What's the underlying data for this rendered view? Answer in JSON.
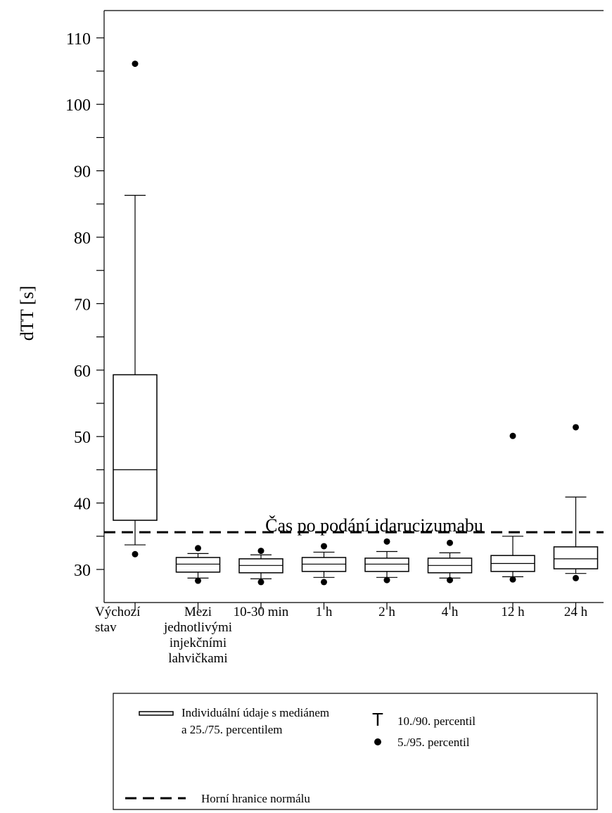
{
  "chart_data": {
    "type": "box",
    "ylabel": "dTT [s]",
    "xlabel": "Čas po podání idarucizumabu",
    "ylim": [
      22,
      117
    ],
    "yticks": [
      30,
      40,
      50,
      60,
      70,
      80,
      90,
      100,
      110
    ],
    "reference_line": {
      "value": 35.6,
      "style": "dashed"
    },
    "categories": [
      [
        "Výchozí",
        "stav"
      ],
      [
        "Mezi",
        "jednotlivými",
        "injekčními",
        "lahvičkami"
      ],
      [
        "10-30 min"
      ],
      [
        "1 h"
      ],
      [
        "2 h"
      ],
      [
        "4 h"
      ],
      [
        "12 h"
      ],
      [
        "24 h"
      ]
    ],
    "boxes": [
      {
        "p5": 32.3,
        "p10": 33.7,
        "q1": 37.4,
        "median": 45.0,
        "q3": 59.3,
        "p90": 86.3,
        "p95": 106.1
      },
      {
        "p5": 28.3,
        "p10": 28.7,
        "q1": 29.6,
        "median": 30.8,
        "q3": 31.8,
        "p90": 32.4,
        "p95": 33.2
      },
      {
        "p5": 28.1,
        "p10": 28.6,
        "q1": 29.5,
        "median": 30.6,
        "q3": 31.6,
        "p90": 32.2,
        "p95": 32.8
      },
      {
        "p5": 28.1,
        "p10": 28.8,
        "q1": 29.7,
        "median": 30.8,
        "q3": 31.8,
        "p90": 32.6,
        "p95": 33.5
      },
      {
        "p5": 28.4,
        "p10": 28.8,
        "q1": 29.7,
        "median": 30.8,
        "q3": 31.7,
        "p90": 32.7,
        "p95": 34.2
      },
      {
        "p5": 28.4,
        "p10": 28.7,
        "q1": 29.5,
        "median": 30.6,
        "q3": 31.7,
        "p90": 32.5,
        "p95": 34.0
      },
      {
        "p5": 28.5,
        "p10": 28.9,
        "q1": 29.7,
        "median": 30.9,
        "q3": 32.1,
        "p90": 35.0,
        "p95": 50.1
      },
      {
        "p5": 28.7,
        "p10": 29.4,
        "q1": 30.1,
        "median": 31.6,
        "q3": 33.4,
        "p90": 40.9,
        "p95": 51.4
      }
    ],
    "legend": {
      "box_label_1": "Individuální údaje s mediánem",
      "box_label_2": "a 25./75. percentilem",
      "dashed_label": "Horní hranice normálu",
      "whisker_symbol": "T",
      "whisker_label": "10./90. percentil",
      "dot_label": "5./95. percentil"
    }
  }
}
